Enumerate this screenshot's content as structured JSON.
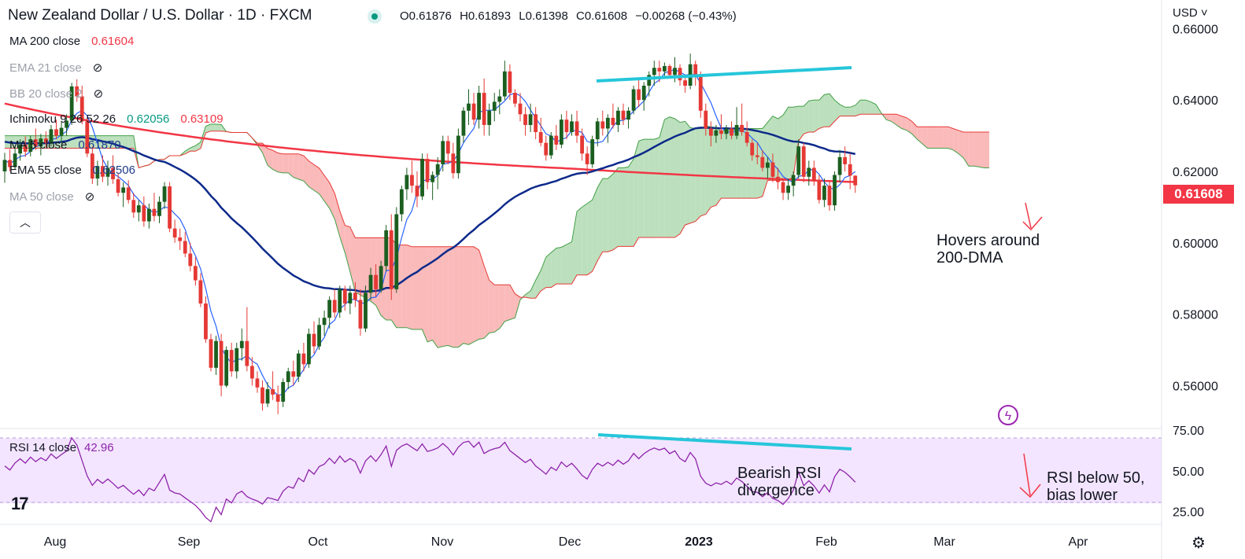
{
  "header": {
    "title": "New Zealand Dollar / U.S. Dollar · 1D · FXCM",
    "open": "O0.61876",
    "high": "H0.61893",
    "low": "L0.61398",
    "close": "C0.61608",
    "change": "−0.00268 (−0.43%)",
    "currency": "USD"
  },
  "indicators": [
    {
      "label": "MA 200 close",
      "value": "0.61604",
      "color": "#f23645",
      "hidden": false
    },
    {
      "label": "EMA 21 close",
      "value": "",
      "color": "#9ca0aa",
      "hidden": true
    },
    {
      "label": "BB 20 close 2",
      "value": "",
      "color": "#9ca0aa",
      "hidden": true
    },
    {
      "label": "Ichimoku 9 26 52 26",
      "value": "0.62056",
      "value2": "0.63109",
      "color": "#089981",
      "color2": "#f23645",
      "hidden": false
    },
    {
      "label": "MA 5 close",
      "value": "0.61870",
      "color": "#1e3a8a",
      "hidden": false
    },
    {
      "label": "EMA 55 close",
      "value": "0.62506",
      "color": "#1e3a8a",
      "hidden": false
    },
    {
      "label": "MA 50 close",
      "value": "",
      "color": "#9ca0aa",
      "hidden": true
    }
  ],
  "icons": {
    "eye_off": "eye-off-icon",
    "collapse": "chevron-up-icon",
    "settings": "gear-icon",
    "bolt": "lightning-icon",
    "logo": "tradingview-logo"
  },
  "rsi": {
    "label": "RSI 14 close",
    "value": "42.96"
  },
  "price_tag": "0.61608",
  "annotations": {
    "dma_line1": "Hovers around",
    "dma_line2": "200-DMA",
    "div_line1": "Bearish RSI",
    "div_line2": "divergence",
    "rsi_line1": "RSI below 50,",
    "rsi_line2": "bias lower"
  },
  "logo_text": "17",
  "colors": {
    "up": "#1b5e20",
    "down": "#e53935",
    "ma200": "#f23645",
    "ema55": "#0d2a8a",
    "ma5": "#2962ff",
    "trendline": "#26c6da",
    "rsi": "#8e24aa"
  },
  "chart_data": [
    {
      "type": "candlestick",
      "price_axis": {
        "ticks": [
          0.66,
          0.64,
          0.62,
          0.6,
          0.58,
          0.56
        ],
        "tick_labels": [
          "0.66000",
          "0.64000",
          "0.62000",
          "0.60000",
          "0.58000",
          "0.56000"
        ],
        "range": [
          0.548,
          0.668
        ]
      },
      "time_axis": {
        "labels": [
          "Aug",
          "Sep",
          "Oct",
          "Nov",
          "Dec",
          "2023",
          "Feb",
          "Mar",
          "Apr"
        ]
      },
      "ohlc": [
        [
          0.62,
          0.6252,
          0.6168,
          0.6232
        ],
        [
          0.6232,
          0.6262,
          0.62,
          0.6212
        ],
        [
          0.6212,
          0.6268,
          0.6205,
          0.625
        ],
        [
          0.625,
          0.629,
          0.623,
          0.6275
        ],
        [
          0.6275,
          0.6298,
          0.624,
          0.6255
        ],
        [
          0.6255,
          0.63,
          0.6242,
          0.629
        ],
        [
          0.629,
          0.632,
          0.626,
          0.627
        ],
        [
          0.627,
          0.6305,
          0.6245,
          0.6292
        ],
        [
          0.6292,
          0.6312,
          0.6268,
          0.628
        ],
        [
          0.628,
          0.633,
          0.627,
          0.6318
        ],
        [
          0.6318,
          0.6345,
          0.629,
          0.63
        ],
        [
          0.63,
          0.6338,
          0.628,
          0.6322
        ],
        [
          0.6322,
          0.636,
          0.63,
          0.6342
        ],
        [
          0.6342,
          0.6448,
          0.633,
          0.6438
        ],
        [
          0.6438,
          0.6458,
          0.6395,
          0.641
        ],
        [
          0.641,
          0.644,
          0.6332,
          0.634
        ],
        [
          0.634,
          0.6352,
          0.624,
          0.625
        ],
        [
          0.625,
          0.627,
          0.6165,
          0.618
        ],
        [
          0.618,
          0.623,
          0.616,
          0.6215
        ],
        [
          0.6215,
          0.6245,
          0.617,
          0.6185
        ],
        [
          0.6185,
          0.623,
          0.616,
          0.621
        ],
        [
          0.621,
          0.6245,
          0.6165,
          0.6178
        ],
        [
          0.6178,
          0.6195,
          0.613,
          0.614
        ],
        [
          0.614,
          0.617,
          0.61,
          0.6155
        ],
        [
          0.6155,
          0.6175,
          0.611,
          0.612
        ],
        [
          0.612,
          0.614,
          0.607,
          0.6085
        ],
        [
          0.6085,
          0.612,
          0.606,
          0.6105
        ],
        [
          0.6105,
          0.613,
          0.6045,
          0.606
        ],
        [
          0.606,
          0.611,
          0.604,
          0.6095
        ],
        [
          0.6095,
          0.614,
          0.606,
          0.6075
        ],
        [
          0.6075,
          0.613,
          0.6055,
          0.6115
        ],
        [
          0.6115,
          0.617,
          0.6095,
          0.6158
        ],
        [
          0.6158,
          0.617,
          0.603,
          0.604
        ],
        [
          0.604,
          0.6065,
          0.6,
          0.6015
        ],
        [
          0.6015,
          0.604,
          0.598,
          0.6005
        ],
        [
          0.6005,
          0.603,
          0.596,
          0.597
        ],
        [
          0.597,
          0.6,
          0.592,
          0.5935
        ],
        [
          0.5935,
          0.596,
          0.588,
          0.5895
        ],
        [
          0.5895,
          0.5915,
          0.582,
          0.583
        ],
        [
          0.583,
          0.585,
          0.572,
          0.573
        ],
        [
          0.573,
          0.5745,
          0.564,
          0.565
        ],
        [
          0.565,
          0.574,
          0.563,
          0.5725
        ],
        [
          0.5725,
          0.5745,
          0.557,
          0.56
        ],
        [
          0.56,
          0.571,
          0.5595,
          0.57
        ],
        [
          0.57,
          0.572,
          0.5625,
          0.564
        ],
        [
          0.564,
          0.572,
          0.562,
          0.5705
        ],
        [
          0.5705,
          0.576,
          0.567,
          0.5725
        ],
        [
          0.5725,
          0.582,
          0.564,
          0.5655
        ],
        [
          0.5655,
          0.568,
          0.56,
          0.562
        ],
        [
          0.562,
          0.564,
          0.558,
          0.5595
        ],
        [
          0.5595,
          0.5615,
          0.553,
          0.555
        ],
        [
          0.555,
          0.561,
          0.554,
          0.559
        ],
        [
          0.559,
          0.564,
          0.556,
          0.5575
        ],
        [
          0.5575,
          0.56,
          0.552,
          0.5555
        ],
        [
          0.5555,
          0.562,
          0.554,
          0.561
        ],
        [
          0.561,
          0.565,
          0.559,
          0.564
        ],
        [
          0.564,
          0.567,
          0.56,
          0.5625
        ],
        [
          0.5625,
          0.57,
          0.561,
          0.569
        ],
        [
          0.569,
          0.572,
          0.564,
          0.566
        ],
        [
          0.566,
          0.576,
          0.565,
          0.5745
        ],
        [
          0.5745,
          0.578,
          0.569,
          0.571
        ],
        [
          0.571,
          0.579,
          0.57,
          0.577
        ],
        [
          0.577,
          0.581,
          0.574,
          0.579
        ],
        [
          0.579,
          0.585,
          0.576,
          0.584
        ],
        [
          0.584,
          0.587,
          0.579,
          0.5805
        ],
        [
          0.5805,
          0.588,
          0.579,
          0.587
        ],
        [
          0.587,
          0.588,
          0.581,
          0.583
        ],
        [
          0.583,
          0.588,
          0.58,
          0.586
        ],
        [
          0.586,
          0.589,
          0.582,
          0.584
        ],
        [
          0.584,
          0.587,
          0.574,
          0.576
        ],
        [
          0.576,
          0.588,
          0.575,
          0.586
        ],
        [
          0.586,
          0.593,
          0.584,
          0.591
        ],
        [
          0.591,
          0.594,
          0.585,
          0.587
        ],
        [
          0.587,
          0.595,
          0.586,
          0.5935
        ],
        [
          0.5935,
          0.605,
          0.592,
          0.6035
        ],
        [
          0.6035,
          0.608,
          0.584,
          0.587
        ],
        [
          0.587,
          0.61,
          0.586,
          0.608
        ],
        [
          0.608,
          0.616,
          0.606,
          0.615
        ],
        [
          0.615,
          0.621,
          0.612,
          0.619
        ],
        [
          0.619,
          0.623,
          0.614,
          0.616
        ],
        [
          0.616,
          0.62,
          0.61,
          0.613
        ],
        [
          0.613,
          0.625,
          0.612,
          0.6235
        ],
        [
          0.6235,
          0.625,
          0.615,
          0.617
        ],
        [
          0.617,
          0.62,
          0.612,
          0.619
        ],
        [
          0.619,
          0.624,
          0.615,
          0.622
        ],
        [
          0.622,
          0.63,
          0.62,
          0.6285
        ],
        [
          0.6285,
          0.63,
          0.622,
          0.625
        ],
        [
          0.625,
          0.628,
          0.618,
          0.6195
        ],
        [
          0.6195,
          0.632,
          0.618,
          0.63
        ],
        [
          0.63,
          0.638,
          0.628,
          0.637
        ],
        [
          0.637,
          0.643,
          0.633,
          0.639
        ],
        [
          0.639,
          0.642,
          0.633,
          0.6345
        ],
        [
          0.6345,
          0.644,
          0.632,
          0.642
        ],
        [
          0.642,
          0.646,
          0.63,
          0.633
        ],
        [
          0.633,
          0.639,
          0.63,
          0.637
        ],
        [
          0.637,
          0.642,
          0.634,
          0.6395
        ],
        [
          0.6395,
          0.643,
          0.636,
          0.641
        ],
        [
          0.641,
          0.651,
          0.64,
          0.648
        ],
        [
          0.648,
          0.65,
          0.64,
          0.642
        ],
        [
          0.642,
          0.643,
          0.638,
          0.639
        ],
        [
          0.639,
          0.642,
          0.634,
          0.636
        ],
        [
          0.636,
          0.638,
          0.63,
          0.633
        ],
        [
          0.633,
          0.639,
          0.631,
          0.636
        ],
        [
          0.636,
          0.638,
          0.629,
          0.631
        ],
        [
          0.631,
          0.635,
          0.627,
          0.628
        ],
        [
          0.628,
          0.63,
          0.623,
          0.6245
        ],
        [
          0.6245,
          0.631,
          0.6235,
          0.63
        ],
        [
          0.63,
          0.633,
          0.626,
          0.6275
        ],
        [
          0.6275,
          0.636,
          0.6265,
          0.6345
        ],
        [
          0.6345,
          0.637,
          0.629,
          0.631
        ],
        [
          0.631,
          0.636,
          0.63,
          0.634
        ],
        [
          0.634,
          0.637,
          0.628,
          0.63
        ],
        [
          0.63,
          0.632,
          0.623,
          0.625
        ],
        [
          0.625,
          0.627,
          0.619,
          0.622
        ],
        [
          0.622,
          0.63,
          0.621,
          0.629
        ],
        [
          0.629,
          0.635,
          0.627,
          0.634
        ],
        [
          0.634,
          0.637,
          0.63,
          0.632
        ],
        [
          0.632,
          0.636,
          0.628,
          0.635
        ],
        [
          0.635,
          0.639,
          0.632,
          0.633
        ],
        [
          0.633,
          0.638,
          0.631,
          0.637
        ],
        [
          0.637,
          0.639,
          0.633,
          0.6345
        ],
        [
          0.6345,
          0.638,
          0.632,
          0.637
        ],
        [
          0.637,
          0.644,
          0.636,
          0.643
        ],
        [
          0.643,
          0.646,
          0.638,
          0.64
        ],
        [
          0.64,
          0.645,
          0.637,
          0.644
        ],
        [
          0.644,
          0.648,
          0.641,
          0.647
        ],
        [
          0.647,
          0.651,
          0.644,
          0.649
        ],
        [
          0.649,
          0.651,
          0.645,
          0.648
        ],
        [
          0.648,
          0.6505,
          0.646,
          0.6495
        ],
        [
          0.6495,
          0.65,
          0.646,
          0.647
        ],
        [
          0.647,
          0.652,
          0.645,
          0.649
        ],
        [
          0.649,
          0.65,
          0.644,
          0.6455
        ],
        [
          0.6455,
          0.647,
          0.642,
          0.644
        ],
        [
          0.644,
          0.653,
          0.643,
          0.65
        ],
        [
          0.65,
          0.651,
          0.644,
          0.647
        ],
        [
          0.647,
          0.648,
          0.635,
          0.637
        ],
        [
          0.637,
          0.639,
          0.63,
          0.632
        ],
        [
          0.632,
          0.634,
          0.627,
          0.63
        ],
        [
          0.63,
          0.633,
          0.628,
          0.6315
        ],
        [
          0.6315,
          0.636,
          0.629,
          0.6305
        ],
        [
          0.6305,
          0.633,
          0.629,
          0.632
        ],
        [
          0.632,
          0.634,
          0.629,
          0.63
        ],
        [
          0.63,
          0.638,
          0.629,
          0.633
        ],
        [
          0.633,
          0.639,
          0.63,
          0.631
        ],
        [
          0.631,
          0.634,
          0.627,
          0.628
        ],
        [
          0.628,
          0.629,
          0.623,
          0.6245
        ],
        [
          0.6245,
          0.628,
          0.622,
          0.624
        ],
        [
          0.624,
          0.626,
          0.62,
          0.621
        ],
        [
          0.621,
          0.624,
          0.618,
          0.6225
        ],
        [
          0.6225,
          0.625,
          0.617,
          0.6185
        ],
        [
          0.6185,
          0.621,
          0.615,
          0.617
        ],
        [
          0.617,
          0.618,
          0.612,
          0.614
        ],
        [
          0.614,
          0.618,
          0.612,
          0.616
        ],
        [
          0.616,
          0.62,
          0.613,
          0.619
        ],
        [
          0.619,
          0.629,
          0.618,
          0.627
        ],
        [
          0.627,
          0.628,
          0.617,
          0.6185
        ],
        [
          0.6185,
          0.623,
          0.616,
          0.621
        ],
        [
          0.621,
          0.623,
          0.616,
          0.6175
        ],
        [
          0.6175,
          0.619,
          0.611,
          0.612
        ],
        [
          0.612,
          0.618,
          0.61,
          0.616
        ],
        [
          0.616,
          0.617,
          0.609,
          0.6105
        ],
        [
          0.6105,
          0.62,
          0.609,
          0.619
        ],
        [
          0.619,
          0.626,
          0.617,
          0.624
        ],
        [
          0.624,
          0.627,
          0.62,
          0.622
        ],
        [
          0.622,
          0.625,
          0.615,
          0.6188
        ],
        [
          0.6188,
          0.6189,
          0.614,
          0.6161
        ]
      ],
      "series": [
        {
          "name": "MA 200 close",
          "color": "#f23645",
          "values_ref": "ma200"
        },
        {
          "name": "EMA 55 close",
          "color": "#0d2a8a",
          "values_ref": "ema55"
        },
        {
          "name": "MA 5 close",
          "color": "#2962ff",
          "values_ref": "ma5"
        }
      ],
      "ichimoku": {
        "label": "Ichimoku 9 26 52 26",
        "displacement": 26
      },
      "trendlines": [
        {
          "from": [
            0.6505,
            "Dec"
          ],
          "to": [
            0.6545,
            "Feb"
          ],
          "color": "#26c6da"
        }
      ]
    },
    {
      "type": "line",
      "name": "RSI 14 close",
      "range": [
        17,
        76
      ],
      "tick_labels": [
        "75.00",
        "50.00",
        "25.00"
      ],
      "ticks": [
        75,
        50,
        25
      ],
      "band": [
        30,
        70
      ],
      "last_value": 42.96
    }
  ]
}
